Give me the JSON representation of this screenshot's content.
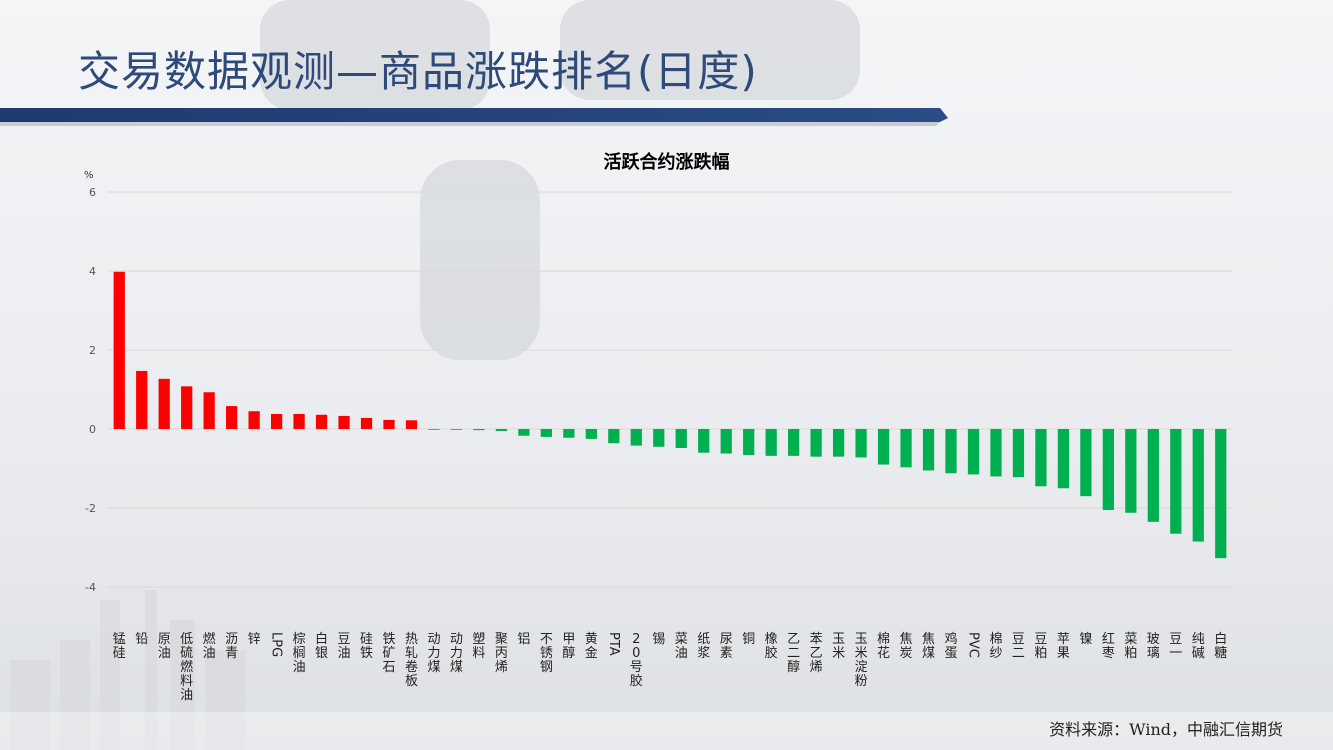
{
  "slide": {
    "title": "交易数据观测—商品涨跌排名(日度)",
    "source": "资料来源：Wind，中融汇信期货"
  },
  "colors": {
    "title": "#2e4a7a",
    "bar_up": "#ff0000",
    "bar_down": "#00b050",
    "header_band": "#1f3a6e"
  },
  "chart_data": {
    "type": "bar",
    "title": "活跃合约涨跌幅",
    "ylabel": "%",
    "xlabel": "",
    "ylim": [
      -4,
      6
    ],
    "yticks": [
      -4,
      -2,
      0,
      2,
      4,
      6
    ],
    "grid": true,
    "categories": [
      "锰硅",
      "铅",
      "原油",
      "低硫燃料油",
      "燃油",
      "沥青",
      "锌",
      "LPG",
      "棕榈油",
      "白银",
      "豆油",
      "硅铁",
      "铁矿石",
      "热轧卷板",
      "动力煤",
      "动力煤",
      "塑料",
      "聚丙烯",
      "铝",
      "不锈钢",
      "甲醇",
      "黄金",
      "PTA",
      "20号胶",
      "锡",
      "菜油",
      "纸浆",
      "尿素",
      "铜",
      "橡胶",
      "乙二醇",
      "苯乙烯",
      "玉米",
      "玉米淀粉",
      "棉花",
      "焦炭",
      "焦煤",
      "鸡蛋",
      "PVC",
      "棉纱",
      "豆二",
      "豆粕",
      "苹果",
      "镍",
      "红枣",
      "菜粕",
      "玻璃",
      "豆一",
      "纯碱",
      "白糖"
    ],
    "values": [
      3.98,
      1.47,
      1.27,
      1.08,
      0.93,
      0.58,
      0.45,
      0.38,
      0.38,
      0.36,
      0.33,
      0.28,
      0.23,
      0.22,
      0.0,
      0.0,
      -0.03,
      -0.05,
      -0.17,
      -0.2,
      -0.22,
      -0.25,
      -0.36,
      -0.42,
      -0.45,
      -0.48,
      -0.6,
      -0.62,
      -0.66,
      -0.68,
      -0.68,
      -0.7,
      -0.7,
      -0.72,
      -0.9,
      -0.97,
      -1.05,
      -1.12,
      -1.15,
      -1.2,
      -1.22,
      -1.45,
      -1.5,
      -1.7,
      -2.05,
      -2.12,
      -2.35,
      -2.65,
      -2.85,
      -3.27
    ]
  }
}
